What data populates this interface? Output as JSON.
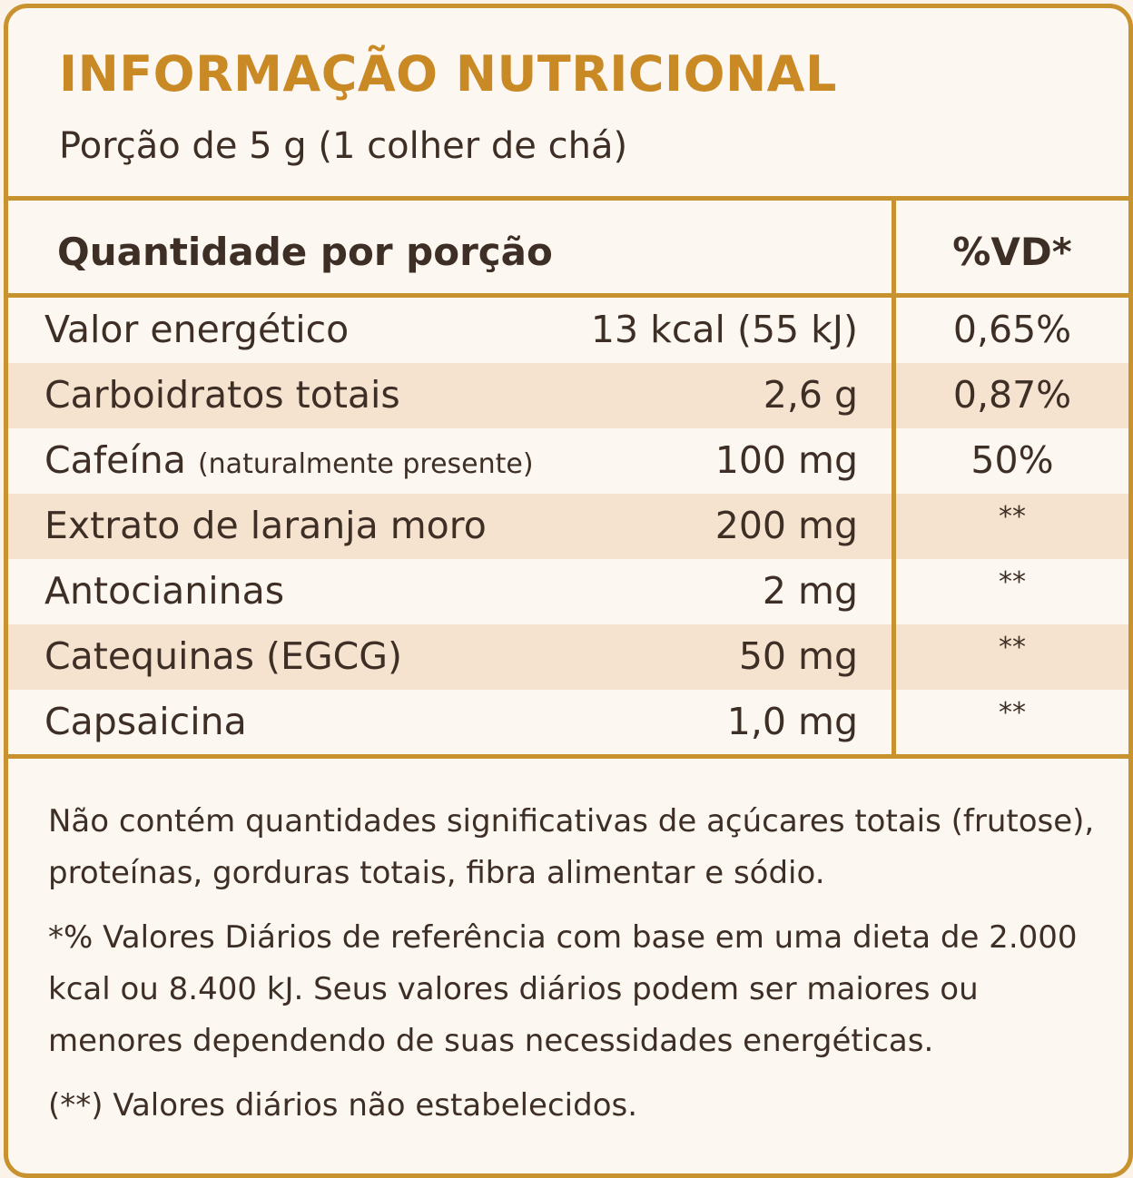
{
  "label": {
    "title": "INFORMAÇÃO NUTRICIONAL",
    "serving": "Porção de 5 g (1 colher de chá)",
    "header_quantity": "Quantidade por porção",
    "header_vd": "%VD*"
  },
  "rows": [
    {
      "name": "Valor energético",
      "note": "",
      "amount": "13 kcal (55 kJ)",
      "vd": "0,65%"
    },
    {
      "name": "Carboidratos totais",
      "note": "",
      "amount": "2,6 g",
      "vd": "0,87%"
    },
    {
      "name": "Cafeína",
      "note": "(naturalmente presente)",
      "amount": "100 mg",
      "vd": "50%"
    },
    {
      "name": "Extrato de laranja moro",
      "note": "",
      "amount": "200 mg",
      "vd": "**"
    },
    {
      "name": "Antocianinas",
      "note": "",
      "amount": "2 mg",
      "vd": "**"
    },
    {
      "name": "Catequinas (EGCG)",
      "note": "",
      "amount": "50 mg",
      "vd": "**"
    },
    {
      "name": "Capsaicina",
      "note": "",
      "amount": "1,0 mg",
      "vd": "**"
    }
  ],
  "footer": {
    "not_significant": "Não contém quantidades significativas de açúcares totais (frutose), proteínas, gorduras totais, fibra alimentar e sódio.",
    "vd_reference": "*% Valores Diários de referência com base em uma dieta de 2.000 kcal ou 8.400 kJ. Seus valores diários podem ser maiores ou menores dependendo de suas necessidades energéticas.",
    "not_established": "(**) Valores diários não estabelecidos."
  },
  "colors": {
    "accent": "#c8922f",
    "title": "#c98a26",
    "text": "#3d2f25",
    "shaded_row": "#f6e3cf",
    "background": "#fdf7f1"
  }
}
